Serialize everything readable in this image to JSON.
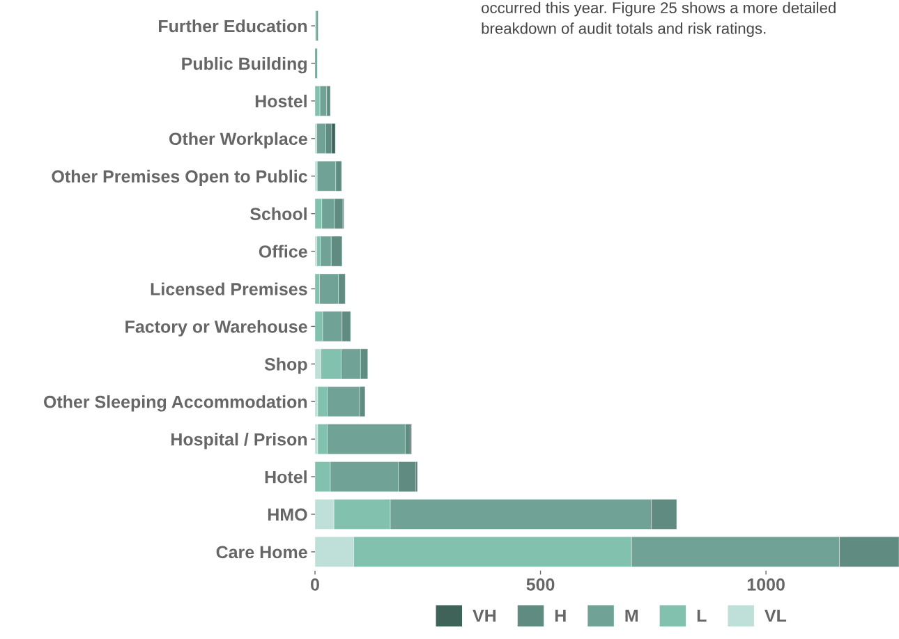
{
  "chart_data": {
    "type": "bar",
    "orientation": "horizontal",
    "stacked": true,
    "legend": "bottom",
    "grid": false,
    "categories": [
      "Further Education",
      "Public Building",
      "Hostel",
      "Other Workplace",
      "Other Premises Open to Public",
      "School",
      "Office",
      "Licensed Premises",
      "Factory or Warehouse",
      "Shop",
      "Other Sleeping Accommodation",
      "Hospital / Prison",
      "Hotel",
      "HMO",
      "Care Home"
    ],
    "series": [
      {
        "name": "VL",
        "color": "#bfe0d8",
        "values": [
          2,
          0,
          0,
          4,
          5,
          0,
          4,
          0,
          0,
          13,
          6,
          6,
          0,
          42,
          86
        ]
      },
      {
        "name": "L",
        "color": "#82c1ae",
        "values": [
          0,
          0,
          11,
          0,
          0,
          15,
          8,
          10,
          17,
          45,
          21,
          21,
          34,
          125,
          616
        ]
      },
      {
        "name": "M",
        "color": "#70a396",
        "values": [
          5,
          5,
          15,
          20,
          41,
          28,
          24,
          42,
          43,
          43,
          72,
          173,
          151,
          579,
          461
        ]
      },
      {
        "name": "H",
        "color": "#5f8b80",
        "values": [
          0,
          0,
          8,
          13,
          13,
          19,
          24,
          15,
          19,
          16,
          12,
          11,
          39,
          56,
          132
        ]
      },
      {
        "name": "VH",
        "color": "#3f6259",
        "values": [
          0,
          0,
          0,
          8,
          0,
          2,
          0,
          0,
          0,
          0,
          0,
          3,
          3,
          0,
          0
        ]
      }
    ],
    "xlim": [
      0,
      1295
    ],
    "xticks": [
      0,
      500,
      1000
    ],
    "annotations": [
      "occurred this year. Figure 25 shows a more detailed\nbreakdown of audit totals and risk ratings."
    ]
  }
}
